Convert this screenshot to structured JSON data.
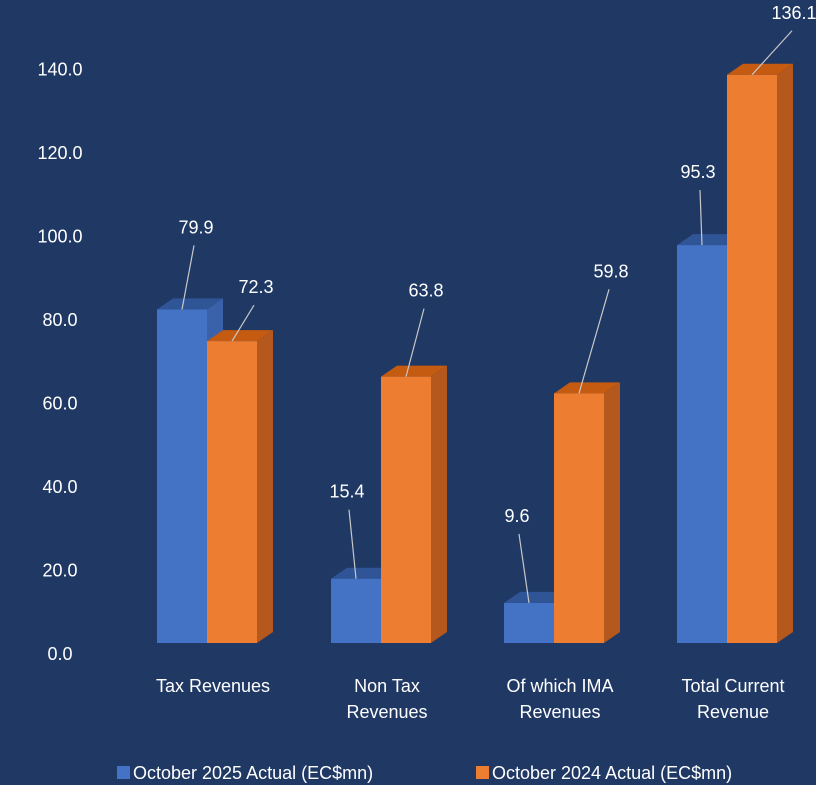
{
  "chart_data": {
    "type": "bar",
    "style": "3d-clustered-column",
    "categories": [
      [
        "Tax Revenues"
      ],
      [
        "Non Tax",
        "Revenues"
      ],
      [
        "Of which IMA",
        "Revenues"
      ],
      [
        "Total Current",
        "Revenue"
      ]
    ],
    "series": [
      {
        "name": "October 2025 Actual (EC$mn)",
        "values": [
          79.9,
          15.4,
          9.6,
          95.3
        ],
        "labels": [
          "79.9",
          "15.4",
          "9.6",
          "95.3"
        ],
        "color": "#4472c4",
        "side_color": "#3a62ab",
        "top_color": "#2f5597"
      },
      {
        "name": "October 2024 Actual (EC$mn)",
        "values": [
          72.3,
          63.8,
          59.8,
          136.1
        ],
        "labels": [
          "72.3",
          "63.8",
          "59.8",
          "136.1"
        ],
        "color": "#ed7d31",
        "side_color": "#b4581e",
        "top_color": "#c55a11"
      }
    ],
    "y_ticks": [
      "0.0",
      "20.0",
      "40.0",
      "60.0",
      "80.0",
      "100.0",
      "120.0",
      "140.0"
    ],
    "ylim": [
      0,
      140
    ],
    "legend_position": "bottom",
    "grid": false,
    "title": "",
    "xlabel": "",
    "ylabel": ""
  },
  "colors": {
    "background": "#1f3864",
    "text": "#ffffff",
    "leader_line": "#c8c8c8"
  }
}
